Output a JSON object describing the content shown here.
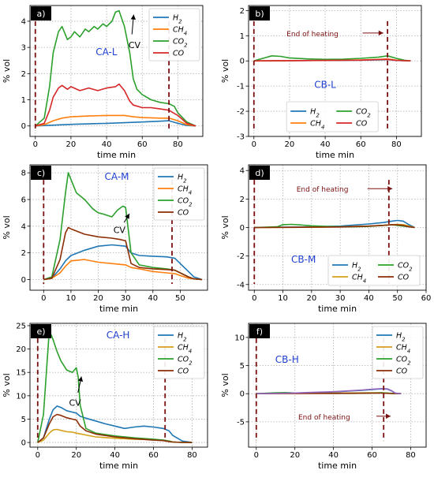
{
  "chart_data": [
    {
      "type": "line",
      "panel_label": "a)",
      "inset_label": "CA-L",
      "annotation": "CV",
      "xlabel": "time min",
      "ylabel": "% vol",
      "xlim": [
        -3,
        94
      ],
      "ylim": [
        -0.4,
        4.6
      ],
      "xticks": [
        0,
        20,
        40,
        60,
        80
      ],
      "yticks": [
        0,
        1,
        2,
        3,
        4
      ],
      "grid": true,
      "legend_position": "top-right",
      "heating_start": 0,
      "heating_end": 75,
      "series": [
        {
          "name": "H",
          "sub": "2",
          "color": "#1f77b4",
          "x": [
            0,
            10,
            20,
            40,
            60,
            70,
            75,
            80,
            85,
            90
          ],
          "y": [
            0,
            0.03,
            0.06,
            0.1,
            0.15,
            0.18,
            0.2,
            0.1,
            0.02,
            0
          ]
        },
        {
          "name": "CH",
          "sub": "4",
          "color": "#ff7f0e",
          "x": [
            0,
            5,
            10,
            15,
            20,
            30,
            40,
            50,
            55,
            60,
            70,
            75,
            80,
            85,
            90
          ],
          "y": [
            0,
            0.05,
            0.2,
            0.3,
            0.35,
            0.38,
            0.4,
            0.4,
            0.35,
            0.32,
            0.3,
            0.3,
            0.2,
            0.05,
            0
          ]
        },
        {
          "name": "CO",
          "sub": "2",
          "color": "#2ca02c",
          "x": [
            0,
            5,
            8,
            10,
            13,
            15,
            18,
            20,
            22,
            25,
            28,
            30,
            33,
            35,
            38,
            40,
            43,
            45,
            47,
            50,
            53,
            55,
            57,
            60,
            65,
            70,
            75,
            78,
            80,
            85,
            90
          ],
          "y": [
            0,
            0.3,
            1.5,
            2.8,
            3.6,
            3.8,
            3.3,
            3.4,
            3.6,
            3.4,
            3.7,
            3.6,
            3.8,
            3.7,
            3.9,
            3.8,
            4.0,
            4.35,
            4.4,
            3.8,
            2.8,
            1.8,
            1.4,
            1.2,
            1.0,
            0.9,
            0.85,
            0.75,
            0.5,
            0.15,
            0
          ]
        },
        {
          "name": "CO",
          "sub": "",
          "color": "#d62728",
          "x": [
            0,
            5,
            8,
            10,
            13,
            15,
            18,
            20,
            25,
            30,
            35,
            40,
            45,
            47,
            50,
            53,
            55,
            60,
            65,
            70,
            75,
            80,
            85,
            90
          ],
          "y": [
            0,
            0.1,
            0.6,
            1.1,
            1.45,
            1.55,
            1.4,
            1.5,
            1.35,
            1.45,
            1.35,
            1.45,
            1.5,
            1.6,
            1.35,
            0.95,
            0.8,
            0.7,
            0.7,
            0.65,
            0.6,
            0.4,
            0.1,
            0
          ]
        }
      ]
    },
    {
      "type": "line",
      "panel_label": "b)",
      "inset_label": "CB-L",
      "annotation": "End of heating",
      "xlabel": "time min",
      "ylabel": "% vol",
      "xlim": [
        -3,
        94
      ],
      "ylim": [
        -3,
        2.2
      ],
      "xticks": [
        0,
        20,
        40,
        60,
        80
      ],
      "yticks": [
        -3,
        -2,
        -1,
        0,
        1,
        2
      ],
      "grid": true,
      "legend_position": "lower-center",
      "heating_start": 0,
      "heating_end": 75,
      "series": [
        {
          "name": "H",
          "sub": "2",
          "color": "#1f77b4",
          "x": [
            0,
            20,
            40,
            60,
            70,
            75,
            80,
            88
          ],
          "y": [
            0,
            0.01,
            0.02,
            0.03,
            0.04,
            0.05,
            0.02,
            0
          ]
        },
        {
          "name": "CH",
          "sub": "4",
          "color": "#ff7f0e",
          "x": [
            0,
            20,
            40,
            60,
            70,
            75,
            80,
            88
          ],
          "y": [
            0,
            0.01,
            0.02,
            0.04,
            0.06,
            0.08,
            0.03,
            0
          ]
        },
        {
          "name": "CO",
          "sub": "2",
          "color": "#2ca02c",
          "x": [
            0,
            5,
            10,
            15,
            20,
            30,
            40,
            50,
            60,
            70,
            75,
            80,
            85,
            88
          ],
          "y": [
            0,
            0.1,
            0.2,
            0.18,
            0.12,
            0.08,
            0.06,
            0.07,
            0.1,
            0.15,
            0.2,
            0.1,
            0.02,
            0
          ]
        },
        {
          "name": "CO",
          "sub": "",
          "color": "#d62728",
          "x": [
            0,
            20,
            40,
            60,
            70,
            75,
            80,
            88
          ],
          "y": [
            0,
            0.01,
            0.02,
            0.03,
            0.05,
            0.06,
            0.02,
            0
          ]
        }
      ]
    },
    {
      "type": "line",
      "panel_label": "c)",
      "inset_label": "CA-M",
      "annotation": "CV",
      "xlabel": "time min",
      "ylabel": "% vol",
      "xlim": [
        -5,
        60
      ],
      "ylim": [
        -0.8,
        8.6
      ],
      "xticks": [
        0,
        10,
        20,
        30,
        40,
        50
      ],
      "yticks": [
        0,
        2,
        4,
        6,
        8
      ],
      "grid": true,
      "legend_position": "top-right",
      "heating_start": 0,
      "heating_end": 47,
      "series": [
        {
          "name": "H",
          "sub": "2",
          "color": "#1f77b4",
          "x": [
            0,
            3,
            6,
            8,
            10,
            15,
            20,
            25,
            30,
            32,
            35,
            40,
            45,
            48,
            50,
            53,
            55,
            58
          ],
          "y": [
            0,
            0.1,
            0.8,
            1.4,
            1.8,
            2.2,
            2.5,
            2.6,
            2.5,
            2.0,
            1.8,
            1.75,
            1.7,
            1.6,
            1.2,
            0.6,
            0.2,
            0
          ]
        },
        {
          "name": "CH",
          "sub": "4",
          "color": "#ff7f0e",
          "x": [
            0,
            3,
            6,
            8,
            10,
            15,
            20,
            25,
            30,
            32,
            35,
            40,
            45,
            48,
            50,
            53,
            55,
            58
          ],
          "y": [
            0,
            0.1,
            0.5,
            1.0,
            1.4,
            1.5,
            1.3,
            1.2,
            1.1,
            0.9,
            0.8,
            0.6,
            0.5,
            0.45,
            0.3,
            0.1,
            0.05,
            0
          ]
        },
        {
          "name": "CO",
          "sub": "2",
          "color": "#2ca02c",
          "x": [
            0,
            3,
            6,
            8,
            9,
            10,
            12,
            15,
            18,
            20,
            22,
            25,
            27,
            29,
            30,
            32,
            35,
            40,
            45,
            48,
            50,
            53,
            55,
            58
          ],
          "y": [
            0,
            0.2,
            3.0,
            6.5,
            8.0,
            7.5,
            6.5,
            6.0,
            5.3,
            5.0,
            4.9,
            4.7,
            5.2,
            5.5,
            5.4,
            2.0,
            1.1,
            0.9,
            0.8,
            0.7,
            0.5,
            0.2,
            0.05,
            0
          ]
        },
        {
          "name": "CO",
          "sub": "",
          "color": "#8c2d04",
          "x": [
            0,
            3,
            6,
            8,
            9,
            10,
            15,
            20,
            25,
            28,
            30,
            32,
            35,
            40,
            45,
            48,
            50,
            53,
            55,
            58
          ],
          "y": [
            0,
            0.1,
            1.5,
            3.5,
            3.9,
            3.8,
            3.4,
            3.2,
            3.1,
            3.0,
            2.9,
            1.2,
            0.9,
            0.8,
            0.75,
            0.7,
            0.5,
            0.2,
            0.05,
            0
          ]
        }
      ]
    },
    {
      "type": "line",
      "panel_label": "d)",
      "inset_label": "CB-M",
      "annotation": "End of heating",
      "xlabel": "time min",
      "ylabel": "% vol",
      "xlim": [
        -2,
        60
      ],
      "ylim": [
        -4.4,
        4.4
      ],
      "xticks": [
        0,
        10,
        20,
        30,
        40,
        50,
        60
      ],
      "yticks": [
        -4,
        -2,
        0,
        2,
        4
      ],
      "grid": true,
      "legend_position": "lower-right",
      "heating_start": 0,
      "heating_end": 47,
      "series": [
        {
          "name": "H",
          "sub": "2",
          "color": "#1f77b4",
          "x": [
            0,
            10,
            20,
            30,
            40,
            45,
            48,
            50,
            52,
            54,
            56
          ],
          "y": [
            0,
            0.02,
            0.05,
            0.1,
            0.25,
            0.35,
            0.45,
            0.5,
            0.45,
            0.2,
            0
          ]
        },
        {
          "name": "CH",
          "sub": "4",
          "color": "#d4a017",
          "x": [
            0,
            10,
            20,
            30,
            40,
            45,
            48,
            50,
            52,
            54,
            56
          ],
          "y": [
            0,
            0.01,
            0.02,
            0.05,
            0.1,
            0.15,
            0.2,
            0.22,
            0.2,
            0.1,
            0
          ]
        },
        {
          "name": "CO",
          "sub": "2",
          "color": "#2ca02c",
          "x": [
            0,
            8,
            10,
            13,
            16,
            20,
            25,
            30,
            35,
            40,
            45,
            48,
            50,
            52,
            54,
            56
          ],
          "y": [
            0,
            0.05,
            0.2,
            0.22,
            0.18,
            0.12,
            0.08,
            0.06,
            0.05,
            0.08,
            0.15,
            0.2,
            0.15,
            0.1,
            0.05,
            0
          ]
        },
        {
          "name": "CO",
          "sub": "",
          "color": "#8c2d04",
          "x": [
            0,
            10,
            20,
            30,
            40,
            45,
            48,
            50,
            52,
            54,
            56
          ],
          "y": [
            0,
            0.01,
            0.02,
            0.04,
            0.1,
            0.15,
            0.2,
            0.18,
            0.15,
            0.05,
            0
          ]
        }
      ]
    },
    {
      "type": "line",
      "panel_label": "e)",
      "inset_label": "CA-H",
      "annotation": "CV",
      "xlabel": "time min",
      "ylabel": "% vol",
      "xlim": [
        -4,
        88
      ],
      "ylim": [
        -1,
        25.5
      ],
      "xticks": [
        0,
        20,
        40,
        60,
        80
      ],
      "yticks": [
        0,
        5,
        10,
        15,
        20,
        25
      ],
      "grid": true,
      "legend_position": "top-right",
      "heating_start": 0,
      "heating_end": 66,
      "series": [
        {
          "name": "H",
          "sub": "2",
          "color": "#1f77b4",
          "x": [
            0,
            3,
            6,
            8,
            10,
            12,
            15,
            18,
            20,
            22,
            25,
            30,
            35,
            40,
            45,
            50,
            55,
            60,
            65,
            68,
            70,
            75,
            80
          ],
          "y": [
            0,
            1.0,
            5.0,
            7.0,
            7.8,
            7.5,
            6.8,
            6.5,
            6.3,
            5.6,
            5.2,
            4.6,
            4.0,
            3.5,
            3.0,
            3.3,
            3.5,
            3.3,
            3.0,
            2.5,
            1.5,
            0.3,
            0
          ]
        },
        {
          "name": "CH",
          "sub": "4",
          "color": "#d4a017",
          "x": [
            0,
            3,
            6,
            8,
            10,
            12,
            15,
            18,
            20,
            25,
            30,
            40,
            50,
            60,
            65,
            68,
            70,
            75,
            80
          ],
          "y": [
            0,
            0.5,
            2.0,
            2.7,
            2.8,
            2.6,
            2.3,
            2.2,
            2.0,
            1.6,
            1.2,
            0.9,
            0.7,
            0.6,
            0.5,
            0.3,
            0.1,
            0.02,
            0
          ]
        },
        {
          "name": "CO",
          "sub": "2",
          "color": "#2ca02c",
          "x": [
            0,
            3,
            5,
            6,
            8,
            10,
            12,
            15,
            18,
            20,
            21,
            22,
            25,
            30,
            40,
            50,
            60,
            65,
            68,
            70,
            75,
            80
          ],
          "y": [
            0,
            6.0,
            18.0,
            24.0,
            22.0,
            19.5,
            17.5,
            15.5,
            15.0,
            16.0,
            14.0,
            8.0,
            3.0,
            2.0,
            1.4,
            1.0,
            0.7,
            0.5,
            0.3,
            0.1,
            0.02,
            0
          ]
        },
        {
          "name": "CO",
          "sub": "",
          "color": "#8c2d04",
          "x": [
            0,
            3,
            6,
            8,
            10,
            12,
            15,
            18,
            20,
            22,
            25,
            30,
            40,
            50,
            60,
            65,
            68,
            70,
            75,
            80
          ],
          "y": [
            0,
            1.0,
            4.0,
            5.5,
            6.0,
            5.8,
            5.3,
            5.0,
            4.8,
            3.5,
            2.5,
            1.8,
            1.2,
            0.8,
            0.5,
            0.4,
            0.2,
            0.1,
            0.02,
            0
          ]
        }
      ]
    },
    {
      "type": "line",
      "panel_label": "f)",
      "inset_label": "CB-H",
      "annotation": "End of heating",
      "xlabel": "time min",
      "ylabel": "% vol",
      "xlim": [
        -4,
        88
      ],
      "ylim": [
        -9.5,
        12.5
      ],
      "xticks": [
        0,
        20,
        40,
        60,
        80
      ],
      "yticks": [
        -5,
        0,
        5,
        10
      ],
      "grid": true,
      "legend_position": "top-right",
      "heating_start": 0,
      "heating_end": 66,
      "series": [
        {
          "name": "H",
          "sub": "2",
          "color": "#1f77b4",
          "x": [
            0,
            10,
            20,
            30,
            40,
            50,
            55,
            60,
            65,
            68,
            70,
            72,
            75
          ],
          "y": [
            0,
            0.05,
            0.1,
            0.2,
            0.3,
            0.5,
            0.6,
            0.75,
            0.85,
            0.8,
            0.5,
            0.1,
            0
          ]
        },
        {
          "name": "CH",
          "sub": "4",
          "color": "#d4a017",
          "x": [
            0,
            20,
            40,
            60,
            65,
            70,
            75
          ],
          "y": [
            0,
            0.05,
            0.1,
            0.15,
            0.15,
            0.05,
            0
          ]
        },
        {
          "name": "CO",
          "sub": "2",
          "color": "#2ca02c",
          "x": [
            0,
            10,
            15,
            20,
            30,
            40,
            50,
            60,
            65,
            70,
            75
          ],
          "y": [
            0,
            0.15,
            0.2,
            0.12,
            0.08,
            0.05,
            0.05,
            0.1,
            0.15,
            0.05,
            0
          ]
        },
        {
          "name": "CO",
          "sub": "",
          "color": "#8c2d04",
          "x": [
            0,
            20,
            40,
            60,
            65,
            70,
            75
          ],
          "y": [
            0,
            0.03,
            0.06,
            0.1,
            0.1,
            0.03,
            0
          ]
        },
        {
          "name": "",
          "sub": "",
          "color": "#9467bd",
          "x": [
            0,
            10,
            20,
            30,
            40,
            50,
            55,
            60,
            65,
            68,
            70,
            72,
            75
          ],
          "y": [
            0,
            0.05,
            0.12,
            0.25,
            0.35,
            0.55,
            0.65,
            0.8,
            0.9,
            0.85,
            0.55,
            0.1,
            0
          ]
        }
      ]
    }
  ]
}
